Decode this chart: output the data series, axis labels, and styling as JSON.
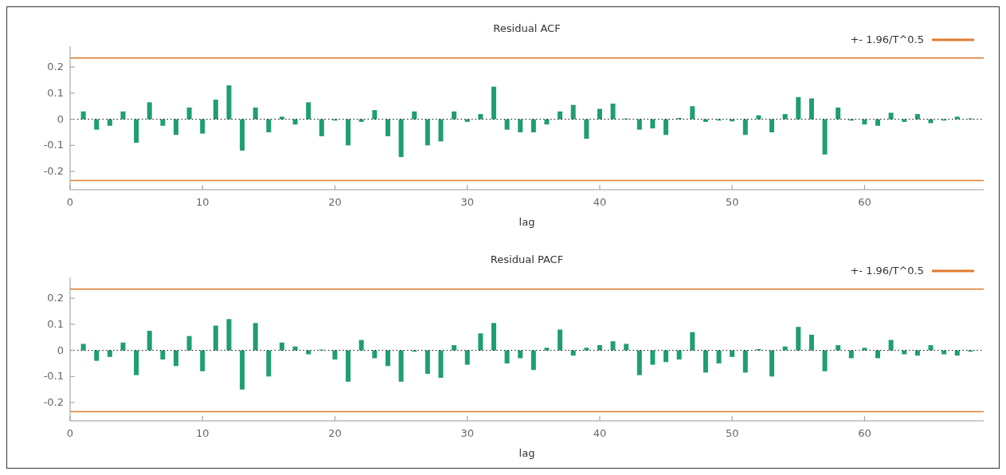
{
  "chart_data": [
    {
      "type": "bar",
      "title": "Residual ACF",
      "xlabel": "lag",
      "x": [
        1,
        2,
        3,
        4,
        5,
        6,
        7,
        8,
        9,
        10,
        11,
        12,
        13,
        14,
        15,
        16,
        17,
        18,
        19,
        20,
        21,
        22,
        23,
        24,
        25,
        26,
        27,
        28,
        29,
        30,
        31,
        32,
        33,
        34,
        35,
        36,
        37,
        38,
        39,
        40,
        41,
        42,
        43,
        44,
        45,
        46,
        47,
        48,
        49,
        50,
        51,
        52,
        53,
        54,
        55,
        56,
        57,
        58,
        59,
        60,
        61,
        62,
        63,
        64,
        65,
        66,
        67,
        68
      ],
      "values": [
        0.03,
        -0.04,
        -0.025,
        0.03,
        -0.09,
        0.065,
        -0.025,
        -0.06,
        0.045,
        -0.055,
        0.075,
        0.13,
        -0.12,
        0.045,
        -0.05,
        0.01,
        -0.02,
        0.065,
        -0.065,
        -0.005,
        -0.1,
        -0.01,
        0.035,
        -0.065,
        -0.145,
        0.03,
        -0.1,
        -0.085,
        0.03,
        -0.01,
        0.02,
        0.125,
        -0.04,
        -0.05,
        -0.05,
        -0.02,
        0.03,
        0.055,
        -0.075,
        0.04,
        0.06,
        0.003,
        -0.04,
        -0.035,
        -0.06,
        0.005,
        0.05,
        -0.01,
        -0.005,
        -0.008,
        -0.06,
        0.015,
        -0.05,
        0.02,
        0.085,
        0.08,
        -0.135,
        0.045,
        -0.005,
        -0.02,
        -0.025,
        0.025,
        -0.01,
        0.02,
        -0.015,
        -0.005,
        0.01,
        0.003
      ],
      "color": "#1f9e74",
      "xlim": [
        0,
        69
      ],
      "xticks": [
        0,
        10,
        20,
        30,
        40,
        50,
        60
      ],
      "ylim": [
        -0.27,
        0.28
      ],
      "yticks": [
        -0.2,
        -0.1,
        0,
        0.1,
        0.2
      ],
      "ref_lines": [
        {
          "axis": "y",
          "value": 0.235,
          "label": "+- 1.96/T^0.5",
          "color": "#e07b2e"
        },
        {
          "axis": "y",
          "value": -0.235,
          "color": "#e07b2e"
        },
        {
          "axis": "y",
          "value": 0,
          "color": "#000000",
          "line_style": "dotted"
        }
      ],
      "legend": "top right",
      "grid": false
    },
    {
      "type": "bar",
      "title": "Residual PACF",
      "xlabel": "lag",
      "x": [
        1,
        2,
        3,
        4,
        5,
        6,
        7,
        8,
        9,
        10,
        11,
        12,
        13,
        14,
        15,
        16,
        17,
        18,
        19,
        20,
        21,
        22,
        23,
        24,
        25,
        26,
        27,
        28,
        29,
        30,
        31,
        32,
        33,
        34,
        35,
        36,
        37,
        38,
        39,
        40,
        41,
        42,
        43,
        44,
        45,
        46,
        47,
        48,
        49,
        50,
        51,
        52,
        53,
        54,
        55,
        56,
        57,
        58,
        59,
        60,
        61,
        62,
        63,
        64,
        65,
        66,
        67,
        68
      ],
      "values": [
        0.025,
        -0.04,
        -0.025,
        0.03,
        -0.095,
        0.075,
        -0.035,
        -0.06,
        0.055,
        -0.08,
        0.095,
        0.12,
        -0.15,
        0.105,
        -0.1,
        0.03,
        0.015,
        -0.015,
        0.003,
        -0.035,
        -0.12,
        0.04,
        -0.03,
        -0.06,
        -0.12,
        -0.005,
        -0.09,
        -0.105,
        0.02,
        -0.055,
        0.065,
        0.105,
        -0.05,
        -0.03,
        -0.075,
        0.01,
        0.08,
        -0.02,
        0.01,
        0.02,
        0.035,
        0.025,
        -0.095,
        -0.055,
        -0.045,
        -0.035,
        0.07,
        -0.085,
        -0.05,
        -0.025,
        -0.085,
        0.005,
        -0.1,
        0.015,
        0.09,
        0.06,
        -0.08,
        0.02,
        -0.03,
        0.01,
        -0.03,
        0.04,
        -0.015,
        -0.02,
        0.02,
        -0.015,
        -0.02,
        -0.005
      ],
      "color": "#1f9e74",
      "xlim": [
        0,
        69
      ],
      "xticks": [
        0,
        10,
        20,
        30,
        40,
        50,
        60
      ],
      "ylim": [
        -0.27,
        0.28
      ],
      "yticks": [
        -0.2,
        -0.1,
        0,
        0.1,
        0.2
      ],
      "ref_lines": [
        {
          "axis": "y",
          "value": 0.235,
          "label": "+- 1.96/T^0.5",
          "color": "#e07b2e"
        },
        {
          "axis": "y",
          "value": -0.235,
          "color": "#e07b2e"
        },
        {
          "axis": "y",
          "value": 0,
          "color": "#000000",
          "line_style": "dotted"
        }
      ],
      "legend": "top right",
      "grid": false
    }
  ]
}
